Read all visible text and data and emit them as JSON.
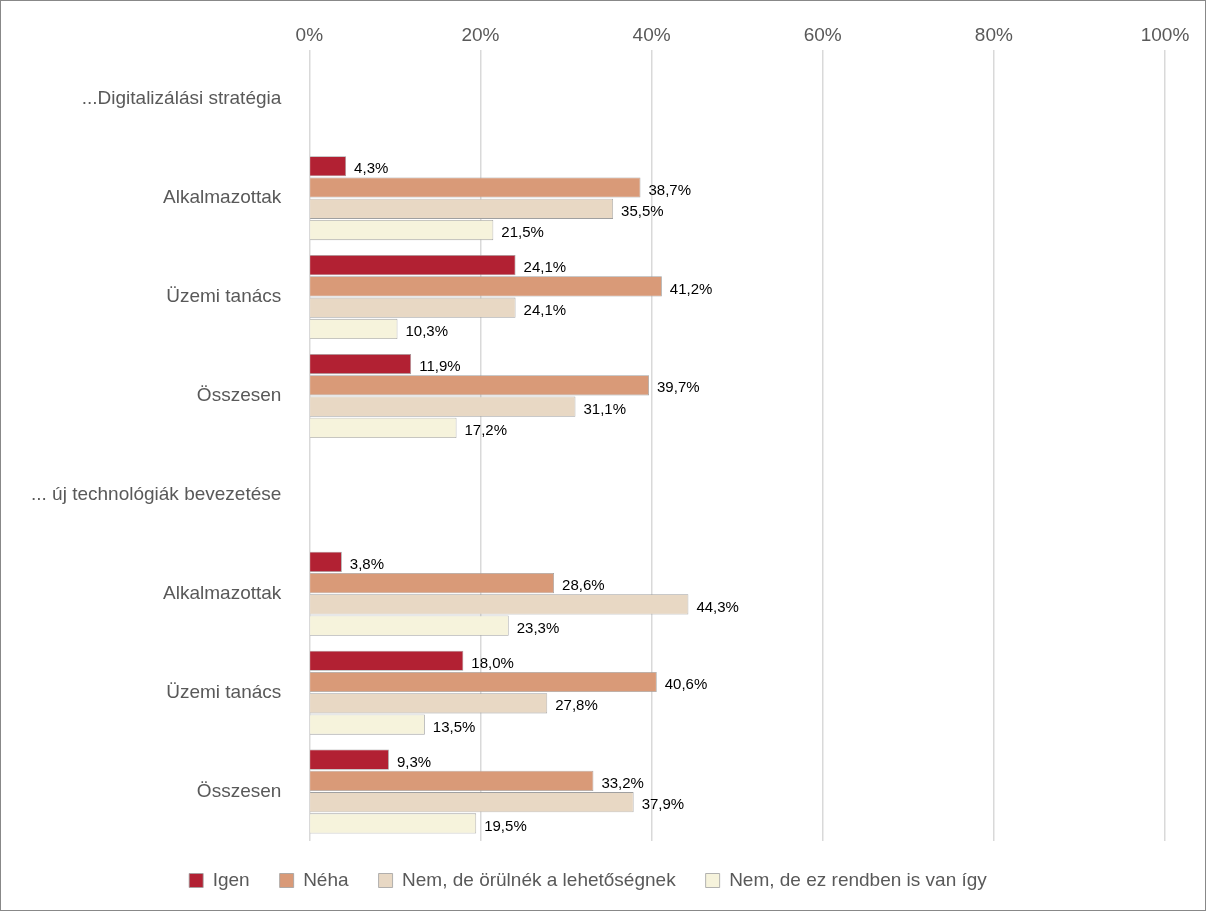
{
  "chart_data": {
    "type": "bar",
    "orientation": "horizontal",
    "categories": [
      "...Digitalizálási stratégia",
      "Alkalmazottak",
      "Üzemi tanács",
      "Összesen",
      "... új technológiák bevezetése",
      "Alkalmazottak",
      "Üzemi tanács",
      "Összesen"
    ],
    "series": [
      {
        "name": "Igen",
        "color": "#b22133",
        "values": [
          null,
          4.3,
          24.1,
          11.9,
          null,
          3.8,
          18.0,
          9.3
        ],
        "value_labels": [
          null,
          "4,3%",
          "24,1%",
          "11,9%",
          null,
          "3,8%",
          "18,0%",
          "9,3%"
        ]
      },
      {
        "name": "Néha",
        "color": "#d99a78",
        "values": [
          null,
          38.7,
          41.2,
          39.7,
          null,
          28.6,
          40.6,
          33.2
        ],
        "value_labels": [
          null,
          "38,7%",
          "41,2%",
          "39,7%",
          null,
          "28,6%",
          "40,6%",
          "33,2%"
        ]
      },
      {
        "name": "Nem, de örülnék a lehetőségnek",
        "color": "#e8d8c4",
        "values": [
          null,
          35.5,
          24.1,
          31.1,
          null,
          44.3,
          27.8,
          37.9
        ],
        "value_labels": [
          null,
          "35,5%",
          "24,1%",
          "31,1%",
          null,
          "44,3%",
          "27,8%",
          "37,9%"
        ]
      },
      {
        "name": "Nem, de ez rendben is van így",
        "color": "#f6f3dc",
        "values": [
          null,
          21.5,
          10.3,
          17.2,
          null,
          23.3,
          13.5,
          19.5
        ],
        "value_labels": [
          null,
          "21,5%",
          "10,3%",
          "17,2%",
          null,
          "23,3%",
          "13,5%",
          "19,5%"
        ]
      }
    ],
    "xlim": [
      0,
      100
    ],
    "xticks": [
      {
        "value": 0,
        "label": "0%"
      },
      {
        "value": 20,
        "label": "20%"
      },
      {
        "value": 40,
        "label": "40%"
      },
      {
        "value": 60,
        "label": "60%"
      },
      {
        "value": 80,
        "label": "80%"
      },
      {
        "value": 100,
        "label": "100%"
      }
    ],
    "grid": "x",
    "legend": "bottom"
  }
}
